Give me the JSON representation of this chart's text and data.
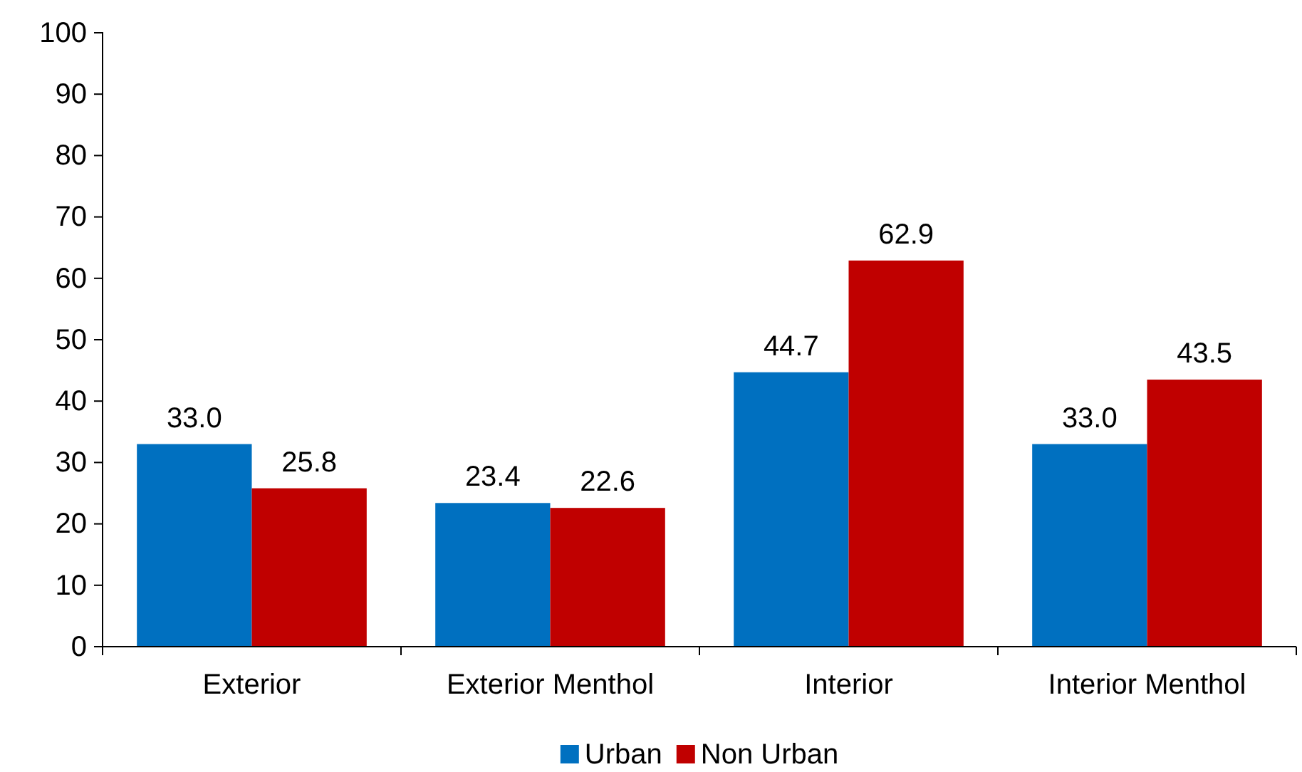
{
  "chart_data": {
    "type": "bar",
    "categories": [
      "Exterior",
      "Exterior Menthol",
      "Interior",
      "Interior Menthol"
    ],
    "series": [
      {
        "name": "Urban",
        "color": "#0070c0",
        "values": [
          33.0,
          23.4,
          44.7,
          33.0
        ],
        "value_labels": [
          "33.0",
          "23.4",
          "44.7",
          "33.0"
        ]
      },
      {
        "name": "Non Urban",
        "color": "#c00000",
        "values": [
          25.8,
          22.6,
          62.9,
          43.5
        ],
        "value_labels": [
          "25.8",
          "22.6",
          "62.9",
          "43.5"
        ]
      }
    ],
    "ylim": [
      0,
      100
    ],
    "yticks": [
      0,
      10,
      20,
      30,
      40,
      50,
      60,
      70,
      80,
      90,
      100
    ],
    "grid": false,
    "legend": "bottom"
  }
}
